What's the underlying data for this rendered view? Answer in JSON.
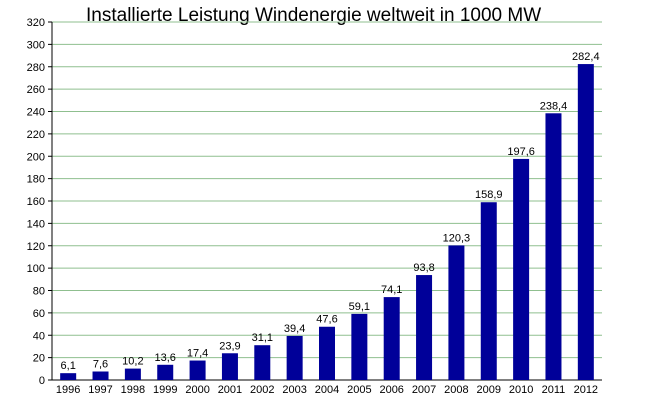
{
  "chart_data": {
    "type": "bar",
    "title": "Installierte Leistung Windenergie weltweit in 1000 MW",
    "xlabel": "",
    "ylabel": "",
    "categories": [
      "1996",
      "1997",
      "1998",
      "1999",
      "2000",
      "2001",
      "2002",
      "2003",
      "2004",
      "2005",
      "2006",
      "2007",
      "2008",
      "2009",
      "2010",
      "2011",
      "2012"
    ],
    "values": [
      6.1,
      7.6,
      10.2,
      13.6,
      17.4,
      23.9,
      31.1,
      39.4,
      47.6,
      59.1,
      74.1,
      93.8,
      120.3,
      158.9,
      197.6,
      238.4,
      282.4
    ],
    "value_labels": [
      "6,1",
      "7,6",
      "10,2",
      "13,6",
      "17,4",
      "23,9",
      "31,1",
      "39,4",
      "47,6",
      "59,1",
      "74,1",
      "93,8",
      "120,3",
      "158,9",
      "197,6",
      "238,4",
      "282,4"
    ],
    "ylim": [
      0,
      320
    ],
    "yticks": [
      0,
      20,
      40,
      60,
      80,
      100,
      120,
      140,
      160,
      180,
      200,
      220,
      240,
      260,
      280,
      300,
      320
    ],
    "grid": true,
    "legend": "none",
    "colors": {
      "bar": "#000099",
      "grid": "#8fbf8f",
      "axis": "#000000",
      "text": "#000000"
    }
  }
}
